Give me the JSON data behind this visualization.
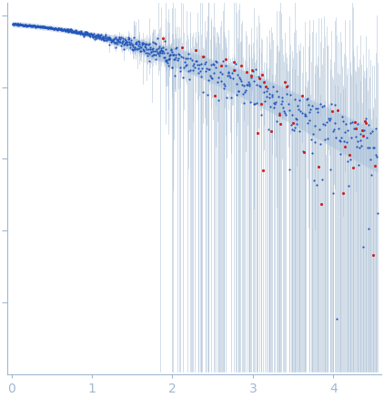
{
  "title": "",
  "xlabel": "",
  "ylabel": "",
  "xlim": [
    -0.05,
    4.6
  ],
  "ylim": [
    0.0001,
    15.0
  ],
  "x_ticks": [
    0,
    1,
    2,
    3,
    4
  ],
  "background_color": "#ffffff",
  "axis_color": "#a0b8d0",
  "blue_dot_color": "#2255bb",
  "red_dot_color": "#cc2222",
  "error_bar_color": "#a0b8d0",
  "fill_color": "#c8d8ee",
  "seed": 12345,
  "n_low": 220,
  "n_mid": 220,
  "n_high": 300
}
